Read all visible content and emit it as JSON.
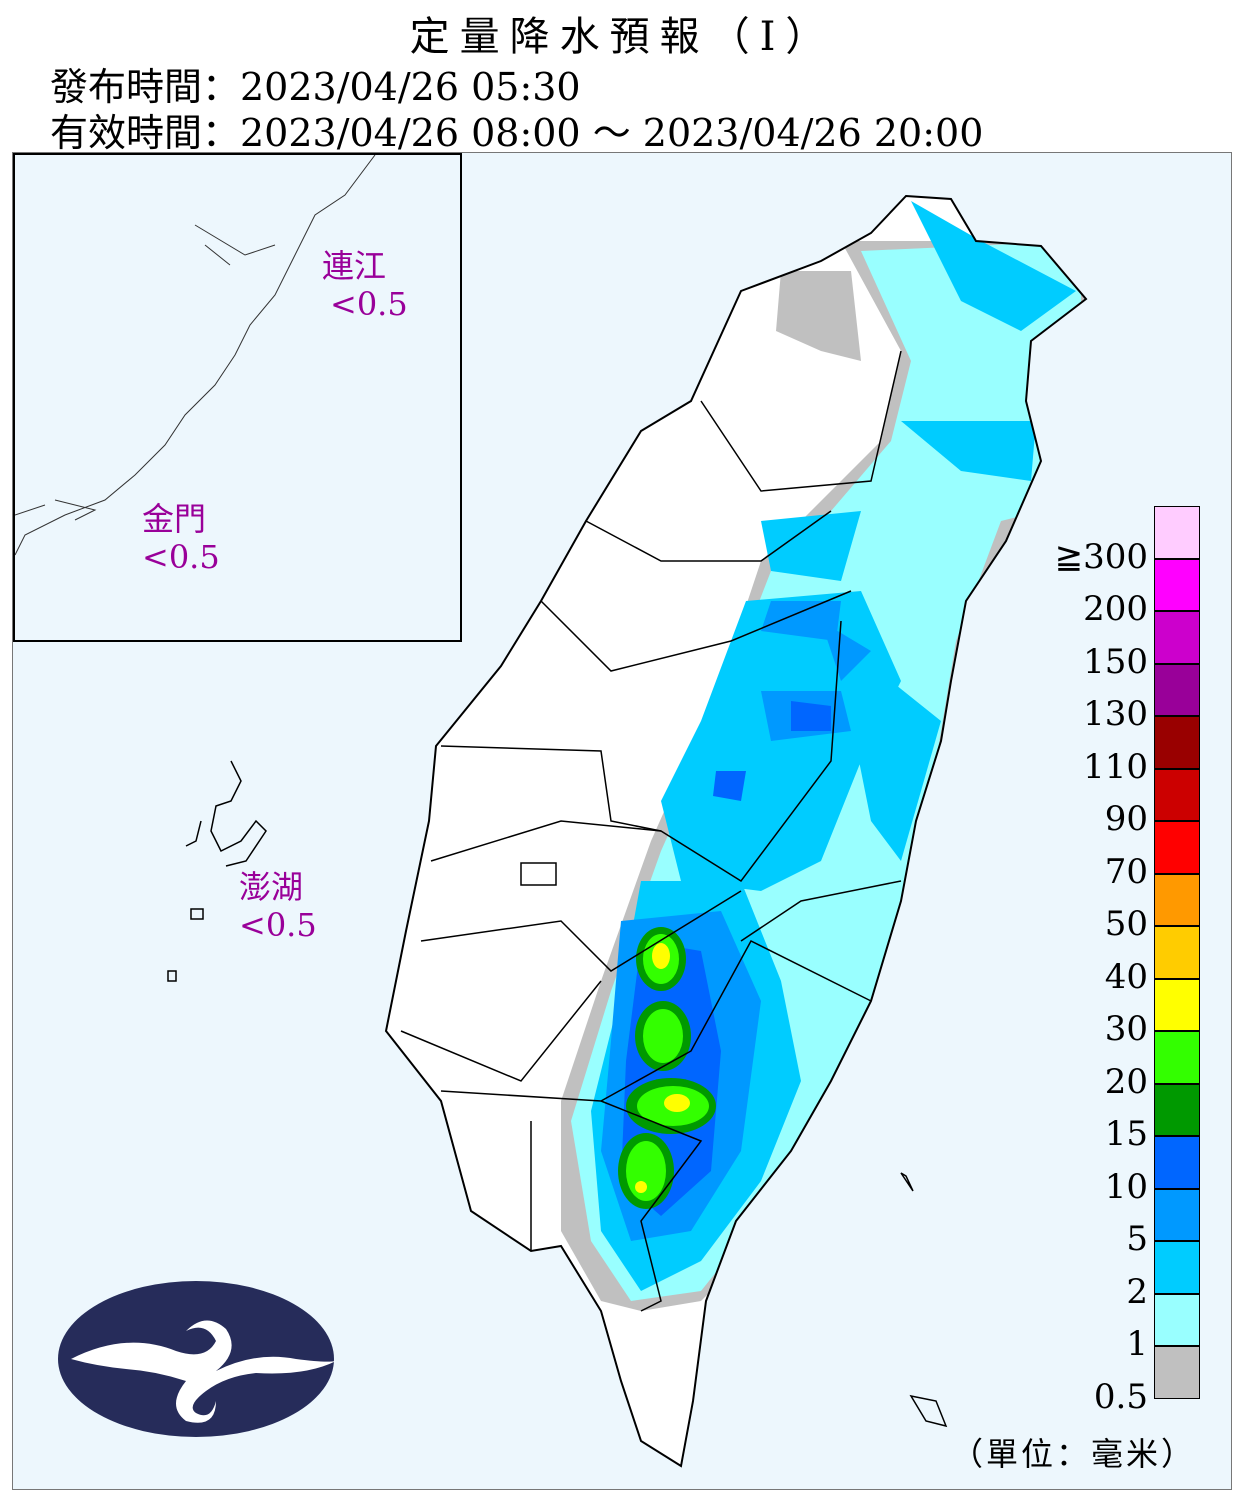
{
  "title": "定量降水預報（Ⅰ）",
  "issue_time": "發布時間：2023/04/26 05:30",
  "valid_time": "有效時間：2023/04/26 08:00 ～ 2023/04/26 20:00",
  "islands": {
    "lienchiang": {
      "name": "連江",
      "value": "<0.5"
    },
    "kinmen": {
      "name": "金門",
      "value": "<0.5"
    },
    "penghu": {
      "name": "澎湖",
      "value": "<0.5"
    }
  },
  "legend": {
    "unit": "（單位：毫米）",
    "labels": [
      "≧300",
      "200",
      "150",
      "130",
      "110",
      "90",
      "70",
      "50",
      "40",
      "30",
      "20",
      "15",
      "10",
      "5",
      "2",
      "1",
      "0.5"
    ],
    "colors": [
      "#ffccff",
      "#ff00ff",
      "#cc00cc",
      "#990099",
      "#990000",
      "#cc0000",
      "#ff0000",
      "#ff9900",
      "#ffcc00",
      "#ffff00",
      "#33ff00",
      "#009900",
      "#0066ff",
      "#0099ff",
      "#00ccff",
      "#99ffff",
      "#c0c0c0"
    ]
  },
  "logo": "cwb-logo"
}
